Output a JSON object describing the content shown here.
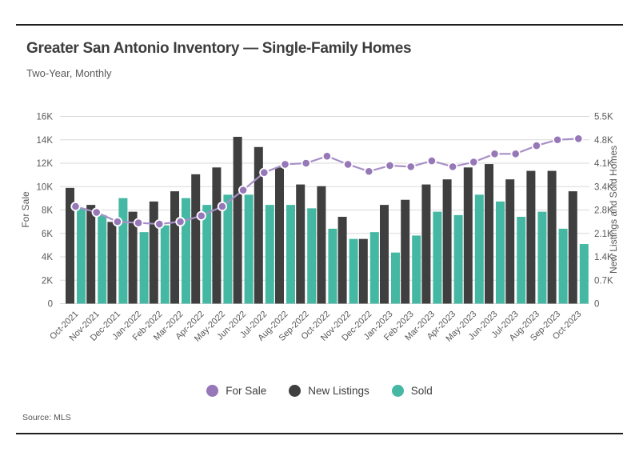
{
  "header": {
    "title": "Greater San Antonio Inventory — Single-Family Homes",
    "subtitle": "Two-Year, Monthly"
  },
  "source": "Source: MLS",
  "legend": [
    {
      "label": "For Sale",
      "color": "#9678b8"
    },
    {
      "label": "New Listings",
      "color": "#3f3f3f"
    },
    {
      "label": "Sold",
      "color": "#45b8a4"
    }
  ],
  "chart_data": {
    "type": "combo: line + grouped bars",
    "title": "Greater San Antonio Inventory — Single-Family Homes",
    "subtitle": "Two-Year, Monthly",
    "grid": true,
    "legend_position": "bottom",
    "categories": [
      "Oct-2021",
      "Nov-2021",
      "Dec-2021",
      "Jan-2022",
      "Feb-2022",
      "Mar-2022",
      "Apr-2022",
      "May-2022",
      "Jun-2022",
      "Jul-2022",
      "Aug-2022",
      "Sep-2022",
      "Oct-2022",
      "Nov-2022",
      "Dec-2022",
      "Jan-2023",
      "Feb-2023",
      "Mar-2023",
      "Apr-2023",
      "May-2023",
      "Jun-2023",
      "Jul-2023",
      "Aug-2023",
      "Sep-2023",
      "Oct-2023"
    ],
    "series": [
      {
        "name": "For Sale",
        "type": "line",
        "axis": "left",
        "color": "#a78fc8",
        "marker_color": "#9678b8",
        "values": [
          8300,
          7800,
          7000,
          6900,
          6800,
          7000,
          7500,
          8300,
          9700,
          11200,
          11900,
          12000,
          12600,
          11900,
          11300,
          11800,
          11700,
          12200,
          11700,
          12100,
          12800,
          12800,
          13500,
          14000,
          14100
        ]
      },
      {
        "name": "New Listings",
        "type": "bar",
        "axis": "right",
        "color": "#3f3f3f",
        "values": [
          3400,
          2900,
          2400,
          2700,
          3000,
          3300,
          3800,
          4000,
          4900,
          4600,
          4000,
          3500,
          3450,
          2550,
          1900,
          2900,
          3050,
          3500,
          3650,
          4000,
          4100,
          3650,
          3900,
          3900,
          3300
        ]
      },
      {
        "name": "Sold",
        "type": "bar",
        "axis": "right",
        "color": "#45b8a4",
        "values": [
          2800,
          2600,
          3100,
          2100,
          2300,
          3100,
          2900,
          3200,
          3200,
          2900,
          2900,
          2800,
          2200,
          1900,
          2100,
          1500,
          2000,
          2700,
          2600,
          3200,
          3000,
          2550,
          2700,
          2200,
          1750
        ]
      }
    ],
    "left_axis": {
      "label": "For Sale",
      "min": 0,
      "max": 16000,
      "tick_labels": [
        "0",
        "2K",
        "4K",
        "6K",
        "8K",
        "10K",
        "12K",
        "14K",
        "16K"
      ]
    },
    "right_axis": {
      "label": "New Listings and Sold Homes",
      "min": 0,
      "max": 5500,
      "tick_labels": [
        "0",
        "0.7K",
        "1.4K",
        "2.1K",
        "2.8K",
        "3.4K",
        "4.1K",
        "4.8K",
        "5.5K"
      ]
    },
    "gridline_color": "#d9d9d9"
  }
}
